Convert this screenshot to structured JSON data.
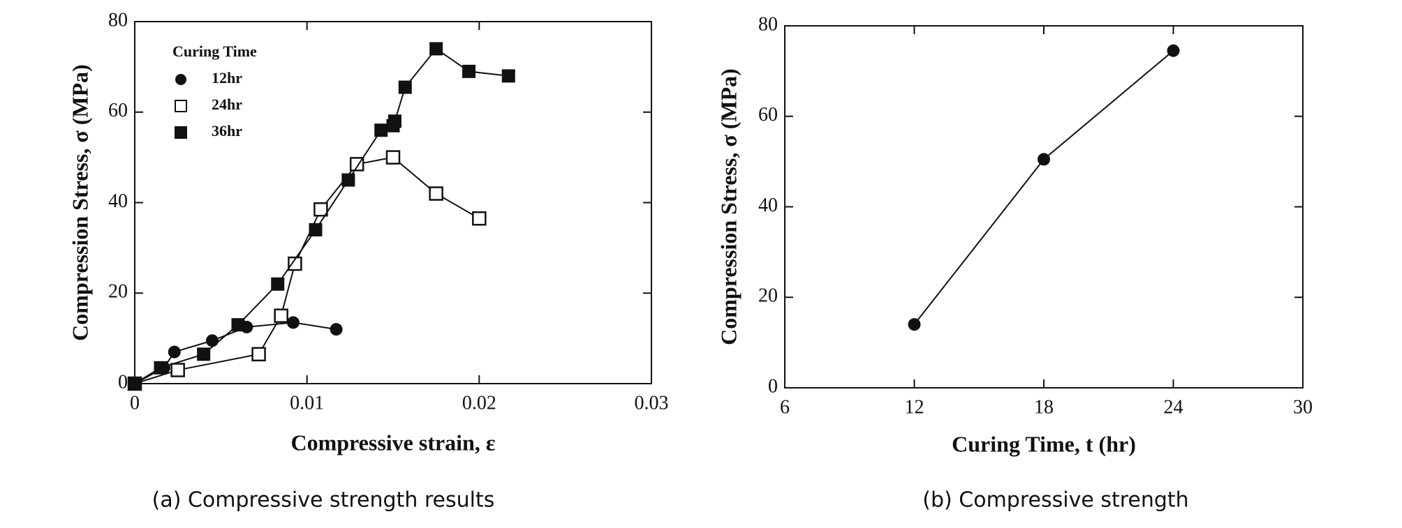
{
  "chart_data": [
    {
      "type": "scatter",
      "caption": "(a) Compressive strength results",
      "xlabel": "Compressive strain,  ε",
      "ylabel": "Compression Stress,  σ (MPa)",
      "xlim": [
        0,
        0.03
      ],
      "xticks": [
        0,
        0.01,
        0.02,
        0.03
      ],
      "ylim": [
        0,
        80
      ],
      "yticks": [
        0,
        20,
        40,
        60,
        80
      ],
      "legend_title": "Curing Time",
      "legend": "upper left",
      "series": [
        {
          "name": "12hr",
          "color": "#111111",
          "marker": "circle",
          "x": [
            0,
            0.0017,
            0.0023,
            0.0045,
            0.0065,
            0.0092,
            0.0117
          ],
          "values": [
            0,
            3.5,
            7,
            9.5,
            12.5,
            13.5,
            12
          ]
        },
        {
          "name": "24hr",
          "color": "#111111",
          "marker": "square-open",
          "x": [
            0,
            0.0025,
            0.0072,
            0.0085,
            0.0093,
            0.0108,
            0.0129,
            0.015,
            0.0175,
            0.02
          ],
          "values": [
            0,
            3,
            6.5,
            15,
            26.5,
            38.5,
            48.5,
            50,
            42,
            36.5
          ]
        },
        {
          "name": "36hr",
          "color": "#111111",
          "marker": "square",
          "x": [
            0,
            0.0015,
            0.004,
            0.006,
            0.0083,
            0.0105,
            0.0124,
            0.0143,
            0.015,
            0.0151,
            0.0157,
            0.0175,
            0.0194,
            0.0217
          ],
          "values": [
            0,
            3.5,
            6.5,
            13,
            22,
            34,
            45,
            56,
            57,
            58,
            65.5,
            74,
            69,
            68
          ]
        }
      ]
    },
    {
      "type": "line",
      "caption": "(b) Compressive strength",
      "xlabel": "Curing Time, t (hr)",
      "ylabel": "Compression Stress,  σ (MPa)",
      "xlim": [
        6,
        30
      ],
      "xticks": [
        6,
        12,
        18,
        24,
        30
      ],
      "ylim": [
        0,
        80
      ],
      "yticks": [
        0,
        20,
        40,
        60,
        80
      ],
      "series": [
        {
          "color": "#111111",
          "marker": "circle",
          "x": [
            12,
            18,
            24
          ],
          "values": [
            14,
            50.5,
            74.5
          ]
        }
      ]
    }
  ]
}
